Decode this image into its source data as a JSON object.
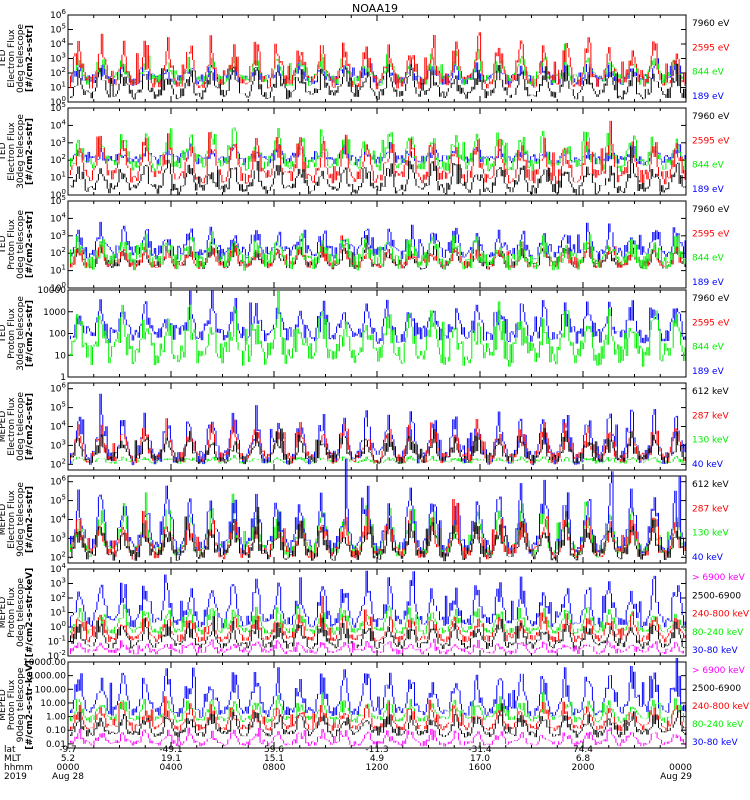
{
  "title": "NOAA19",
  "colors": {
    "black": "#000000",
    "red": "#ff0000",
    "green": "#00ee00",
    "blue": "#0000ff",
    "magenta": "#ff00ff"
  },
  "chart_data": [
    {
      "type": "line",
      "id": "ted-e-0",
      "ylabel": [
        "TED",
        "Electron Flux",
        "0deg telescope",
        "[#/cm2-s-str]"
      ],
      "yscale": "log",
      "ylim": [
        1,
        1000000
      ],
      "ticks": [
        {
          "v": 1,
          "t": "10^0"
        },
        {
          "v": 10,
          "t": "10^1"
        },
        {
          "v": 100,
          "t": "10^2"
        },
        {
          "v": 1000,
          "t": "10^3"
        },
        {
          "v": 10000,
          "t": "10^4"
        },
        {
          "v": 100000,
          "t": "10^5"
        },
        {
          "v": 1000000,
          "t": "10^6"
        }
      ],
      "legend": [
        {
          "label": "7960 eV",
          "color": "black"
        },
        {
          "label": "2595 eV",
          "color": "red"
        },
        {
          "label": "844 eV",
          "color": "green"
        },
        {
          "label": "189 eV",
          "color": "blue"
        }
      ],
      "series": [
        {
          "name": "189 eV",
          "color": "blue",
          "base": 30,
          "peak": 500,
          "spread": 0.8
        },
        {
          "name": "844 eV",
          "color": "green",
          "base": 30,
          "peak": 2000,
          "spread": 0.8
        },
        {
          "name": "2595 eV",
          "color": "red",
          "base": 20,
          "peak": 30000,
          "spread": 0.9
        },
        {
          "name": "7960 eV",
          "color": "black",
          "base": 3,
          "peak": 300,
          "spread": 0.7
        }
      ]
    },
    {
      "type": "line",
      "id": "ted-e-30",
      "ylabel": [
        "TED",
        "Electron Flux",
        "30deg telescope",
        "[#/cm2-s-str]"
      ],
      "yscale": "log",
      "ylim": [
        1,
        100000
      ],
      "ticks": [
        {
          "v": 1,
          "t": "10^0"
        },
        {
          "v": 10,
          "t": "10^1"
        },
        {
          "v": 100,
          "t": "10^2"
        },
        {
          "v": 1000,
          "t": "10^3"
        },
        {
          "v": 10000,
          "t": "10^4"
        },
        {
          "v": 100000,
          "t": "10^5"
        }
      ],
      "legend": [
        {
          "label": "7960 eV",
          "color": "black"
        },
        {
          "label": "2595 eV",
          "color": "red"
        },
        {
          "label": "844 eV",
          "color": "green"
        },
        {
          "label": "189 eV",
          "color": "blue"
        }
      ],
      "series": [
        {
          "name": "189 eV",
          "color": "blue",
          "base": 100,
          "peak": 500,
          "spread": 0.6
        },
        {
          "name": "844 eV",
          "color": "green",
          "base": 50,
          "peak": 5000,
          "spread": 0.8
        },
        {
          "name": "2595 eV",
          "color": "red",
          "base": 10,
          "peak": 3000,
          "spread": 0.8
        },
        {
          "name": "7960 eV",
          "color": "black",
          "base": 2,
          "peak": 100,
          "spread": 0.6
        }
      ]
    },
    {
      "type": "line",
      "id": "ted-p-0",
      "ylabel": [
        "TED",
        "Proton Flux",
        "0deg telescope",
        "[#/cm2-s-str]"
      ],
      "yscale": "log",
      "ylim": [
        1,
        100000
      ],
      "ticks": [
        {
          "v": 1,
          "t": "10^0"
        },
        {
          "v": 10,
          "t": "10^1"
        },
        {
          "v": 100,
          "t": "10^2"
        },
        {
          "v": 1000,
          "t": "10^3"
        },
        {
          "v": 10000,
          "t": "10^4"
        },
        {
          "v": 100000,
          "t": "10^5"
        }
      ],
      "legend": [
        {
          "label": "7960 eV",
          "color": "black"
        },
        {
          "label": "2595 eV",
          "color": "red"
        },
        {
          "label": "844 eV",
          "color": "green"
        },
        {
          "label": "189 eV",
          "color": "blue"
        }
      ],
      "series": [
        {
          "name": "7960 eV",
          "color": "black",
          "base": 20,
          "peak": 300,
          "spread": 0.5
        },
        {
          "name": "2595 eV",
          "color": "red",
          "base": 20,
          "peak": 300,
          "spread": 0.5
        },
        {
          "name": "189 eV",
          "color": "blue",
          "base": 100,
          "peak": 3000,
          "spread": 0.8
        },
        {
          "name": "844 eV",
          "color": "green",
          "base": 30,
          "peak": 1000,
          "spread": 1.0
        }
      ]
    },
    {
      "type": "line",
      "id": "ted-p-30",
      "ylabel": [
        "TED",
        "Proton Flux",
        "30deg telescope",
        "[#/cm2-s-str]"
      ],
      "yscale": "log",
      "ylim": [
        1,
        10000
      ],
      "ticks": [
        {
          "v": 1,
          "t": "1"
        },
        {
          "v": 10,
          "t": "10"
        },
        {
          "v": 100,
          "t": "100"
        },
        {
          "v": 1000,
          "t": "1000"
        },
        {
          "v": 10000,
          "t": "10000"
        }
      ],
      "legend": [
        {
          "label": "7960 eV",
          "color": "black"
        },
        {
          "label": "2595 eV",
          "color": "red"
        },
        {
          "label": "844 eV",
          "color": "green"
        },
        {
          "label": "189 eV",
          "color": "blue"
        }
      ],
      "series": [
        {
          "name": "189 eV",
          "color": "blue",
          "base": 80,
          "peak": 3000,
          "spread": 0.8
        },
        {
          "name": "844 eV",
          "color": "green",
          "base": 10,
          "peak": 1500,
          "spread": 1.1
        }
      ]
    },
    {
      "type": "line",
      "id": "mep-e-0",
      "ylabel": [
        "MEPED",
        "Electron Flux",
        "0deg telescope",
        "[#/cm2-s-str]"
      ],
      "yscale": "log",
      "ylim": [
        50,
        2000000
      ],
      "ticks": [
        {
          "v": 100,
          "t": "10^2"
        },
        {
          "v": 1000,
          "t": "10^3"
        },
        {
          "v": 10000,
          "t": "10^4"
        },
        {
          "v": 100000,
          "t": "10^5"
        },
        {
          "v": 1000000,
          "t": "10^6"
        }
      ],
      "legend": [
        {
          "label": "612 keV",
          "color": "black"
        },
        {
          "label": "287 keV",
          "color": "red"
        },
        {
          "label": "130 keV",
          "color": "green"
        },
        {
          "label": "40 keV",
          "color": "blue"
        }
      ],
      "series": [
        {
          "name": "130 keV",
          "color": "green",
          "base": 130,
          "peak": 250,
          "spread": 0.2
        },
        {
          "name": "40 keV",
          "color": "blue",
          "base": 200,
          "peak": 100000,
          "spread": 0.8
        },
        {
          "name": "287 keV",
          "color": "red",
          "base": 200,
          "peak": 20000,
          "spread": 0.6
        },
        {
          "name": "612 keV",
          "color": "black",
          "base": 180,
          "peak": 5000,
          "spread": 0.5
        }
      ]
    },
    {
      "type": "line",
      "id": "mep-e-90",
      "ylabel": [
        "MEPED",
        "Electron Flux",
        "90deg telescope",
        "[#/cm2-s-str]"
      ],
      "yscale": "log",
      "ylim": [
        50,
        2000000
      ],
      "ticks": [
        {
          "v": 100,
          "t": "10^2"
        },
        {
          "v": 1000,
          "t": "10^3"
        },
        {
          "v": 10000,
          "t": "10^4"
        },
        {
          "v": 100000,
          "t": "10^5"
        },
        {
          "v": 1000000,
          "t": "10^6"
        }
      ],
      "legend": [
        {
          "label": "612 keV",
          "color": "black"
        },
        {
          "label": "287 keV",
          "color": "red"
        },
        {
          "label": "130 keV",
          "color": "green"
        },
        {
          "label": "40 keV",
          "color": "blue"
        }
      ],
      "series": [
        {
          "name": "130 keV",
          "color": "green",
          "base": 200,
          "peak": 50000,
          "spread": 0.7
        },
        {
          "name": "40 keV",
          "color": "blue",
          "base": 300,
          "peak": 600000,
          "spread": 0.8
        },
        {
          "name": "287 keV",
          "color": "red",
          "base": 150,
          "peak": 20000,
          "spread": 0.6
        },
        {
          "name": "612 keV",
          "color": "black",
          "base": 120,
          "peak": 10000,
          "spread": 0.6
        }
      ]
    },
    {
      "type": "line",
      "id": "mep-p-0",
      "ylabel": [
        "MEPED",
        "Proton Flux",
        "0deg telescope",
        "[#/cm2-s-str-keV]"
      ],
      "yscale": "log",
      "ylim": [
        0.01,
        10000
      ],
      "ticks": [
        {
          "v": 0.01,
          "t": "10^-2"
        },
        {
          "v": 0.1,
          "t": "10^-1"
        },
        {
          "v": 1,
          "t": "10^0"
        },
        {
          "v": 10,
          "t": "10^1"
        },
        {
          "v": 100,
          "t": "10^2"
        },
        {
          "v": 1000,
          "t": "10^3"
        },
        {
          "v": 10000,
          "t": "10^4"
        }
      ],
      "legend": [
        {
          "label": "> 6900 keV",
          "color": "magenta"
        },
        {
          "label": "2500-6900",
          "color": "black"
        },
        {
          "label": "240-800 keV",
          "color": "red"
        },
        {
          "label": "80-240 keV",
          "color": "green"
        },
        {
          "label": "30-80 keV",
          "color": "blue"
        }
      ],
      "series": [
        {
          "name": "30-80 keV",
          "color": "blue",
          "base": 2,
          "peak": 3000,
          "spread": 0.8
        },
        {
          "name": "80-240 keV",
          "color": "green",
          "base": 0.5,
          "peak": 30,
          "spread": 0.5
        },
        {
          "name": "240-800 keV",
          "color": "red",
          "base": 0.15,
          "peak": 10,
          "spread": 0.5
        },
        {
          "name": "2500-6900",
          "color": "black",
          "base": 0.05,
          "peak": 3,
          "spread": 0.5
        },
        {
          "name": "> 6900 keV",
          "color": "magenta",
          "base": 0.02,
          "peak": 0.1,
          "spread": 0.4
        }
      ]
    },
    {
      "type": "line",
      "id": "mep-p-90",
      "ylabel": [
        "MEPED",
        "Proton Flux",
        "90deg telescope",
        "[#/cm2-s-str-keV]"
      ],
      "yscale": "log",
      "ylim": [
        0.005,
        10000
      ],
      "ticks": [
        {
          "v": 0.01,
          "t": "0.01"
        },
        {
          "v": 0.1,
          "t": "0.10"
        },
        {
          "v": 1,
          "t": "1.00"
        },
        {
          "v": 10,
          "t": "10.00"
        },
        {
          "v": 100,
          "t": "100.00"
        },
        {
          "v": 1000,
          "t": "1000.00"
        },
        {
          "v": 10000,
          "t": "10000.00"
        }
      ],
      "legend": [
        {
          "label": "> 6900 keV",
          "color": "magenta"
        },
        {
          "label": "2500-6900",
          "color": "black"
        },
        {
          "label": "240-800 keV",
          "color": "red"
        },
        {
          "label": "80-240 keV",
          "color": "green"
        },
        {
          "label": "30-80 keV",
          "color": "blue"
        }
      ],
      "series": [
        {
          "name": "30-80 keV",
          "color": "blue",
          "base": 2,
          "peak": 4000,
          "spread": 0.8
        },
        {
          "name": "80-240 keV",
          "color": "green",
          "base": 0.6,
          "peak": 30,
          "spread": 0.5
        },
        {
          "name": "240-800 keV",
          "color": "red",
          "base": 0.15,
          "peak": 10,
          "spread": 0.5
        },
        {
          "name": "2500-6900",
          "color": "black",
          "base": 0.05,
          "peak": 3,
          "spread": 0.5
        },
        {
          "name": "> 6900 keV",
          "color": "magenta",
          "base": 0.01,
          "peak": 0.1,
          "spread": 0.4
        }
      ]
    }
  ],
  "x_axis": {
    "row_labels": [
      "lat",
      "MLT",
      "hhmm",
      "2019"
    ],
    "ticks": [
      {
        "hhmm": "0000",
        "lat": "-9.7",
        "mlt": "5.2",
        "date": "Aug 28"
      },
      {
        "hhmm": "0400",
        "lat": "-49.1",
        "mlt": "19.1",
        "date": ""
      },
      {
        "hhmm": "0800",
        "lat": "59.6",
        "mlt": "15.1",
        "date": ""
      },
      {
        "hhmm": "1200",
        "lat": "-11.3",
        "mlt": "4.9",
        "date": ""
      },
      {
        "hhmm": "1600",
        "lat": "-31.4",
        "mlt": "17.0",
        "date": ""
      },
      {
        "hhmm": "2000",
        "lat": "74.4",
        "mlt": "6.8",
        "date": ""
      },
      {
        "hhmm": "0000",
        "lat": "",
        "mlt": "",
        "date": "Aug 29",
        "last": true
      }
    ]
  }
}
